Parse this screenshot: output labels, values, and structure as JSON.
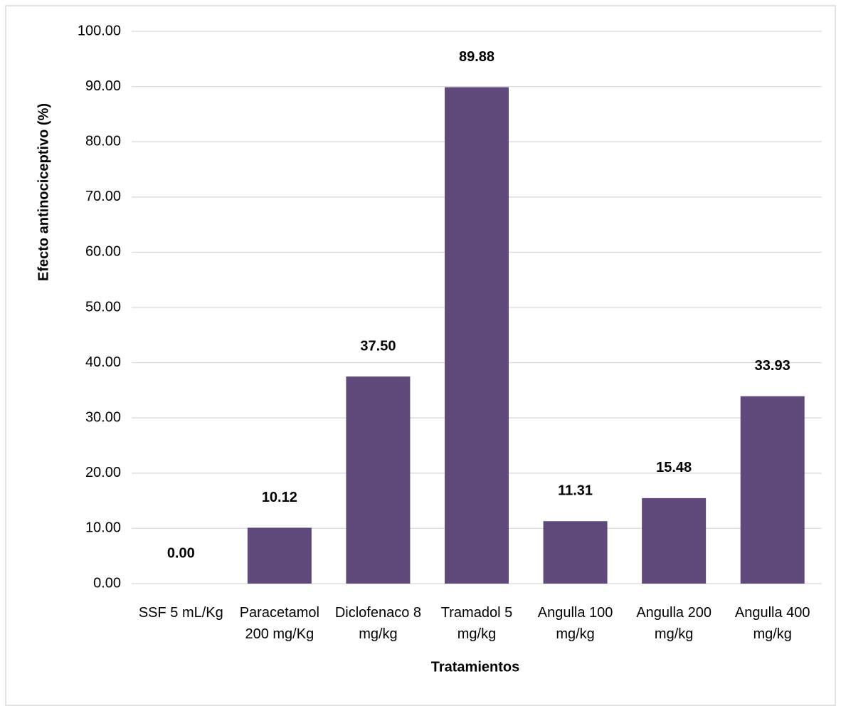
{
  "chart_data": {
    "type": "bar",
    "x_label": "Tratamientos",
    "y_label": "Efecto antinociceptivo (%)",
    "categories": [
      "SSF 5 mL/Kg",
      "Paracetamol 200 mg/Kg",
      "Diclofenaco 8 mg/kg",
      "Tramadol 5 mg/kg",
      "Angulla 100 mg/kg",
      "Angulla 200 mg/kg",
      "Angulla 400 mg/kg"
    ],
    "values": [
      0,
      10.12,
      37.5,
      89.88,
      11.31,
      15.48,
      33.93
    ],
    "value_labels": [
      "0.00",
      "10.12",
      "37.50",
      "89.88",
      "11.31",
      "15.48",
      "33.93"
    ],
    "color": "#604a7b",
    "ylim": [
      0,
      100
    ],
    "yticks": [
      {
        "value": 0,
        "label": "0.00"
      },
      {
        "value": 10,
        "label": "10.00"
      },
      {
        "value": 20,
        "label": "20.00"
      },
      {
        "value": 30,
        "label": "30.00"
      },
      {
        "value": 40,
        "label": "40.00"
      },
      {
        "value": 50,
        "label": "50.00"
      },
      {
        "value": 60,
        "label": "60.00"
      },
      {
        "value": 70,
        "label": "70.00"
      },
      {
        "value": 80,
        "label": "80.00"
      },
      {
        "value": 90,
        "label": "90.00"
      },
      {
        "value": 100,
        "label": "100.00"
      }
    ],
    "grid": true
  }
}
